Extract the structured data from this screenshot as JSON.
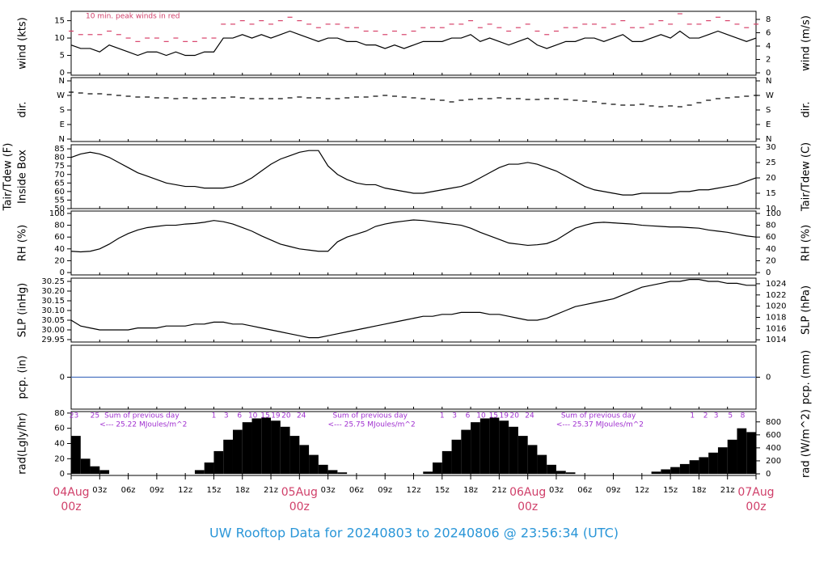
{
  "title": "UW Rooftop Data for 20240803  to  20240806 @ 23:56:34  (UTC)",
  "x": [
    0,
    1,
    2,
    3,
    4,
    5,
    6,
    7,
    8,
    9,
    10,
    11,
    12,
    13,
    14,
    15,
    16,
    17,
    18,
    19,
    20,
    21,
    22,
    23,
    24,
    25,
    26,
    27,
    28,
    29,
    30,
    31,
    32,
    33,
    34,
    35,
    36,
    37,
    38,
    39,
    40,
    41,
    42,
    43,
    44,
    45,
    46,
    47,
    48,
    49,
    50,
    51,
    52,
    53,
    54,
    55,
    56,
    57,
    58,
    59,
    60,
    61,
    62,
    63,
    64,
    65,
    66,
    67,
    68,
    69,
    70,
    71,
    72
  ],
  "xlim": [
    0,
    72
  ],
  "xticks": [
    {
      "value": 0,
      "label": "04Aug",
      "sublabel": "00z"
    },
    {
      "value": 3,
      "label": "03z"
    },
    {
      "value": 6,
      "label": "06z"
    },
    {
      "value": 9,
      "label": "09z"
    },
    {
      "value": 12,
      "label": "12z"
    },
    {
      "value": 15,
      "label": "15z"
    },
    {
      "value": 18,
      "label": "18z"
    },
    {
      "value": 21,
      "label": "21z"
    },
    {
      "value": 24,
      "label": "05Aug",
      "sublabel": "00z"
    },
    {
      "value": 27,
      "label": "03z"
    },
    {
      "value": 30,
      "label": "06z"
    },
    {
      "value": 33,
      "label": "09z"
    },
    {
      "value": 36,
      "label": "12z"
    },
    {
      "value": 39,
      "label": "15z"
    },
    {
      "value": 42,
      "label": "18z"
    },
    {
      "value": 45,
      "label": "21z"
    },
    {
      "value": 48,
      "label": "06Aug",
      "sublabel": "00z"
    },
    {
      "value": 51,
      "label": "03z"
    },
    {
      "value": 54,
      "label": "06z"
    },
    {
      "value": 57,
      "label": "09z"
    },
    {
      "value": 60,
      "label": "12z"
    },
    {
      "value": 63,
      "label": "15z"
    },
    {
      "value": 66,
      "label": "18z"
    },
    {
      "value": 69,
      "label": "21z"
    },
    {
      "value": 72,
      "label": "07Aug",
      "sublabel": "00z"
    }
  ],
  "chart_data": [
    {
      "type": "line",
      "ylabel": "wind (kts)",
      "y2label": "wind (m/s)",
      "annotation": "10 min. peak winds in red",
      "ylim": [
        -0.7,
        17.7
      ],
      "yticks": [
        0,
        5,
        10,
        15
      ],
      "y2lim": [
        -0.36,
        9.21
      ],
      "y2ticks": [
        0,
        2,
        4,
        6,
        8
      ],
      "series": [
        {
          "color": "#000000",
          "style": "line",
          "values": [
            8,
            7,
            7,
            6,
            8,
            7,
            6,
            5,
            6,
            6,
            5,
            6,
            5,
            5,
            6,
            6,
            10,
            10,
            11,
            10,
            11,
            10,
            11,
            12,
            11,
            10,
            9,
            10,
            10,
            9,
            9,
            8,
            8,
            7,
            8,
            7,
            8,
            9,
            9,
            9,
            10,
            10,
            11,
            9,
            10,
            9,
            8,
            9,
            10,
            8,
            7,
            8,
            9,
            9,
            10,
            10,
            9,
            10,
            11,
            9,
            9,
            10,
            11,
            10,
            12,
            10,
            10,
            11,
            12,
            11,
            10,
            9,
            10
          ]
        },
        {
          "color": "#d8436b",
          "style": "dash",
          "values": [
            12,
            11,
            11,
            11,
            12,
            11,
            10,
            9,
            10,
            10,
            9,
            10,
            9,
            9,
            10,
            10,
            14,
            14,
            15,
            14,
            15,
            14,
            15,
            16,
            15,
            14,
            13,
            14,
            14,
            13,
            13,
            12,
            12,
            11,
            12,
            11,
            12,
            13,
            13,
            13,
            14,
            14,
            15,
            13,
            14,
            13,
            12,
            13,
            14,
            12,
            11,
            12,
            13,
            13,
            14,
            14,
            13,
            14,
            15,
            13,
            13,
            14,
            15,
            14,
            17,
            14,
            14,
            15,
            16,
            15,
            14,
            13,
            14
          ]
        }
      ]
    },
    {
      "type": "scatter",
      "ylabel": "dir.",
      "y2label": "dir.",
      "ylim": [
        -15,
        380
      ],
      "yticks": [
        {
          "value": 0,
          "label": "N"
        },
        {
          "value": 90,
          "label": "E"
        },
        {
          "value": 180,
          "label": "S"
        },
        {
          "value": 270,
          "label": "W"
        },
        {
          "value": 360,
          "label": "N"
        }
      ],
      "y2lim": [
        -15,
        380
      ],
      "y2ticks": [
        {
          "value": 0,
          "label": "N"
        },
        {
          "value": 90,
          "label": "E"
        },
        {
          "value": 180,
          "label": "S"
        },
        {
          "value": 270,
          "label": "W"
        },
        {
          "value": 360,
          "label": "N"
        }
      ],
      "series": [
        {
          "color": "#000000",
          "style": "dash",
          "values": [
            290,
            285,
            280,
            280,
            275,
            270,
            265,
            260,
            260,
            255,
            255,
            250,
            255,
            250,
            250,
            255,
            255,
            260,
            255,
            250,
            250,
            250,
            250,
            255,
            260,
            255,
            255,
            250,
            250,
            255,
            260,
            260,
            265,
            270,
            265,
            260,
            255,
            250,
            245,
            240,
            230,
            240,
            245,
            250,
            250,
            255,
            250,
            250,
            245,
            245,
            250,
            250,
            245,
            240,
            235,
            230,
            220,
            215,
            210,
            210,
            215,
            205,
            200,
            205,
            200,
            210,
            225,
            240,
            250,
            255,
            260,
            265,
            270
          ]
        }
      ]
    },
    {
      "type": "line",
      "ylabel": "Tair/Tdew (F)",
      "ylabel2": "Inside Box",
      "y2label": "Tair/Tdew (C)",
      "ylim": [
        50,
        87.4
      ],
      "yticks": [
        50,
        55,
        60,
        65,
        70,
        75,
        80,
        85
      ],
      "y2lim": [
        10,
        30.8
      ],
      "y2ticks": [
        10,
        15,
        20,
        25,
        30
      ],
      "series": [
        {
          "color": "#000000",
          "style": "line",
          "values": [
            80,
            82,
            83,
            82,
            80,
            77,
            74,
            71,
            69,
            67,
            65,
            64,
            63,
            63,
            62,
            62,
            62,
            63,
            65,
            68,
            72,
            76,
            79,
            81,
            83,
            84,
            84,
            75,
            70,
            67,
            65,
            64,
            64,
            62,
            61,
            60,
            59,
            59,
            60,
            61,
            62,
            63,
            65,
            68,
            71,
            74,
            76,
            76,
            77,
            76,
            74,
            72,
            69,
            66,
            63,
            61,
            60,
            59,
            58,
            58,
            59,
            59,
            59,
            59,
            60,
            60,
            61,
            61,
            62,
            63,
            64,
            66,
            68
          ]
        }
      ]
    },
    {
      "type": "line",
      "ylabel": "RH (%)",
      "y2label": "RH (%)",
      "ylim": [
        -4,
        104
      ],
      "yticks": [
        0,
        20,
        40,
        60,
        80,
        100
      ],
      "y2lim": [
        -4,
        104
      ],
      "y2ticks": [
        0,
        20,
        40,
        60,
        80,
        100
      ],
      "series": [
        {
          "color": "#000000",
          "style": "line",
          "values": [
            36,
            35,
            36,
            40,
            48,
            58,
            66,
            72,
            76,
            78,
            80,
            80,
            82,
            83,
            85,
            88,
            86,
            82,
            76,
            70,
            62,
            55,
            48,
            44,
            40,
            38,
            36,
            36,
            52,
            60,
            65,
            70,
            78,
            82,
            85,
            87,
            89,
            88,
            86,
            84,
            82,
            80,
            75,
            68,
            62,
            56,
            50,
            48,
            46,
            47,
            49,
            55,
            65,
            75,
            80,
            84,
            85,
            84,
            83,
            82,
            80,
            79,
            78,
            77,
            77,
            76,
            75,
            72,
            70,
            68,
            65,
            62,
            60
          ]
        }
      ]
    },
    {
      "type": "line",
      "ylabel": "SLP (inHg)",
      "y2label": "SLP (hPa)",
      "ylim": [
        29.9375,
        30.2667
      ],
      "yticks": [
        29.95,
        {
          "value": 30,
          "label": "30.00"
        },
        30.05,
        {
          "value": 30.1,
          "label": "30.10"
        },
        30.15,
        {
          "value": 30.2,
          "label": "30.20"
        },
        30.25
      ],
      "y2lim": [
        1013.6,
        1025.0
      ],
      "y2ticks": [
        1014,
        1016,
        1018,
        1020,
        1022,
        1024
      ],
      "series": [
        {
          "color": "#000000",
          "style": "line",
          "values": [
            30.05,
            30.02,
            30.01,
            30.0,
            30.0,
            30.0,
            30.0,
            30.01,
            30.01,
            30.01,
            30.02,
            30.02,
            30.02,
            30.03,
            30.03,
            30.04,
            30.04,
            30.03,
            30.03,
            30.02,
            30.01,
            30.0,
            29.99,
            29.98,
            29.97,
            29.96,
            29.96,
            29.97,
            29.98,
            29.99,
            30.0,
            30.01,
            30.02,
            30.03,
            30.04,
            30.05,
            30.06,
            30.07,
            30.07,
            30.08,
            30.08,
            30.09,
            30.09,
            30.09,
            30.08,
            30.08,
            30.07,
            30.06,
            30.05,
            30.05,
            30.06,
            30.08,
            30.1,
            30.12,
            30.13,
            30.14,
            30.15,
            30.16,
            30.18,
            30.2,
            30.22,
            30.23,
            30.24,
            30.25,
            30.25,
            30.26,
            30.26,
            30.25,
            30.25,
            30.24,
            30.24,
            30.23,
            30.23
          ]
        }
      ]
    },
    {
      "type": "line",
      "ylabel": "pcp. (in)",
      "y2label": "pcp. (mm)",
      "ylim": [
        -0.1,
        0.1
      ],
      "yticks": [
        0
      ],
      "y2lim": [
        -2.54,
        2.54
      ],
      "y2ticks": [
        0
      ],
      "series": [
        {
          "color": "#4a72c0",
          "style": "line",
          "values": [
            0,
            0,
            0,
            0,
            0,
            0,
            0,
            0,
            0,
            0,
            0,
            0,
            0,
            0,
            0,
            0,
            0,
            0,
            0,
            0,
            0,
            0,
            0,
            0,
            0,
            0,
            0,
            0,
            0,
            0,
            0,
            0,
            0,
            0,
            0,
            0,
            0,
            0,
            0,
            0,
            0,
            0,
            0,
            0,
            0,
            0,
            0,
            0,
            0,
            0,
            0,
            0,
            0,
            0,
            0,
            0,
            0,
            0,
            0,
            0,
            0,
            0,
            0,
            0,
            0,
            0,
            0,
            0,
            0,
            0,
            0,
            0,
            0
          ]
        }
      ]
    },
    {
      "type": "bar",
      "ylabel": "rad(Lgly/hr)",
      "y2label": "rad (W/m^2)",
      "ylim": [
        -2,
        82
      ],
      "yticks": [
        0,
        20,
        40,
        60,
        80
      ],
      "y2lim": [
        -25,
        959
      ],
      "y2ticks": [
        0,
        200,
        400,
        600,
        800
      ],
      "sum_label": "Sum of previous day",
      "daily_sums": [
        "<--- 25.22 MJoules/m^2",
        "<--- 25.75 MJoules/m^2",
        "<--- 25.37 MJoules/m^2"
      ],
      "hour_marks": [
        {
          "x": 0.3,
          "label": "23"
        },
        {
          "x": 2.5,
          "label": "25"
        },
        {
          "x": 15.0,
          "label": "1"
        },
        {
          "x": 16.3,
          "label": "3"
        },
        {
          "x": 17.7,
          "label": "6"
        },
        {
          "x": 19.1,
          "label": "10"
        },
        {
          "x": 20.4,
          "label": "15"
        },
        {
          "x": 21.5,
          "label": "19"
        },
        {
          "x": 22.6,
          "label": "20"
        },
        {
          "x": 24.2,
          "label": "24"
        },
        {
          "x": 39.0,
          "label": "1"
        },
        {
          "x": 40.3,
          "label": "3"
        },
        {
          "x": 41.7,
          "label": "6"
        },
        {
          "x": 43.1,
          "label": "10"
        },
        {
          "x": 44.4,
          "label": "15"
        },
        {
          "x": 45.5,
          "label": "19"
        },
        {
          "x": 46.6,
          "label": "20"
        },
        {
          "x": 48.2,
          "label": "24"
        },
        {
          "x": 65.3,
          "label": "1"
        },
        {
          "x": 66.7,
          "label": "2"
        },
        {
          "x": 67.8,
          "label": "3"
        },
        {
          "x": 69.3,
          "label": "5"
        },
        {
          "x": 70.6,
          "label": "8"
        }
      ],
      "series": [
        {
          "color": "#000000",
          "style": "bar",
          "values": [
            50,
            20,
            10,
            5,
            0,
            0,
            0,
            0,
            0,
            0,
            0,
            0,
            0,
            5,
            15,
            30,
            45,
            58,
            68,
            73,
            74,
            70,
            62,
            50,
            38,
            25,
            12,
            5,
            2,
            0,
            0,
            0,
            0,
            0,
            0,
            0,
            0,
            3,
            15,
            30,
            45,
            58,
            68,
            73,
            74,
            70,
            62,
            50,
            38,
            25,
            12,
            4,
            2,
            0,
            0,
            0,
            0,
            0,
            0,
            0,
            0,
            3,
            6,
            9,
            13,
            18,
            22,
            28,
            35,
            45,
            60,
            55,
            45
          ]
        }
      ]
    }
  ]
}
